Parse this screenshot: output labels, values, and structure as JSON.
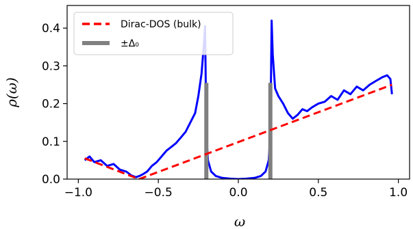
{
  "chart_data": {
    "type": "line",
    "xlabel": "ω",
    "ylabel": "ρ(ω)",
    "xlim": [
      -1.07,
      1.07
    ],
    "ylim": [
      0.0,
      0.46
    ],
    "x_ticks": [
      -1.0,
      -0.5,
      0.0,
      0.5,
      1.0
    ],
    "x_tick_labels": [
      "−1.0",
      "−0.5",
      "0.0",
      "0.5",
      "1.0"
    ],
    "y_ticks": [
      0.0,
      0.1,
      0.2,
      0.3,
      0.4
    ],
    "y_tick_labels": [
      "0.0",
      "0.1",
      "0.2",
      "0.3",
      "0.4"
    ],
    "grid": false,
    "legend_position": "top-left",
    "legend": [
      {
        "label": "Dirac-DOS (bulk)",
        "color": "#ff0000",
        "style": "dashed"
      },
      {
        "label": "±Δ₀",
        "color": "#808080",
        "style": "solid"
      }
    ],
    "series": [
      {
        "name": "",
        "color": "#0000ff",
        "x": [
          -0.96,
          -0.93,
          -0.9,
          -0.86,
          -0.82,
          -0.78,
          -0.74,
          -0.7,
          -0.67,
          -0.64,
          -0.62,
          -0.6,
          -0.57,
          -0.54,
          -0.51,
          -0.48,
          -0.45,
          -0.42,
          -0.39,
          -0.36,
          -0.33,
          -0.3,
          -0.27,
          -0.25,
          -0.23,
          -0.215,
          -0.208,
          -0.205,
          -0.2,
          -0.19,
          -0.17,
          -0.14,
          -0.1,
          -0.05,
          0.0,
          0.05,
          0.1,
          0.14,
          0.17,
          0.19,
          0.2,
          0.205,
          0.208,
          0.215,
          0.23,
          0.25,
          0.28,
          0.31,
          0.34,
          0.37,
          0.4,
          0.43,
          0.46,
          0.5,
          0.54,
          0.58,
          0.62,
          0.66,
          0.7,
          0.74,
          0.78,
          0.82,
          0.86,
          0.9,
          0.93,
          0.95,
          0.96
        ],
        "y": [
          0.05,
          0.06,
          0.045,
          0.05,
          0.035,
          0.04,
          0.025,
          0.02,
          0.01,
          0.005,
          0.008,
          0.012,
          0.02,
          0.035,
          0.045,
          0.06,
          0.075,
          0.085,
          0.095,
          0.11,
          0.125,
          0.15,
          0.175,
          0.22,
          0.28,
          0.36,
          0.405,
          0.3,
          0.12,
          0.05,
          0.02,
          0.008,
          0.003,
          0.001,
          0.0,
          0.001,
          0.003,
          0.008,
          0.02,
          0.05,
          0.12,
          0.3,
          0.42,
          0.33,
          0.24,
          0.22,
          0.2,
          0.175,
          0.16,
          0.17,
          0.185,
          0.18,
          0.19,
          0.2,
          0.205,
          0.22,
          0.21,
          0.235,
          0.225,
          0.245,
          0.235,
          0.25,
          0.26,
          0.27,
          0.275,
          0.265,
          0.225
        ]
      },
      {
        "name": "Dirac-DOS (bulk)",
        "color": "#ff0000",
        "style": "dashed",
        "x": [
          -0.96,
          -0.62,
          0.96
        ],
        "y": [
          0.055,
          0.0,
          0.25
        ]
      }
    ],
    "vertical_bars": {
      "name": "±Δ₀",
      "color": "#808080",
      "x": [
        -0.2,
        0.2
      ],
      "y_top": 0.255
    }
  }
}
